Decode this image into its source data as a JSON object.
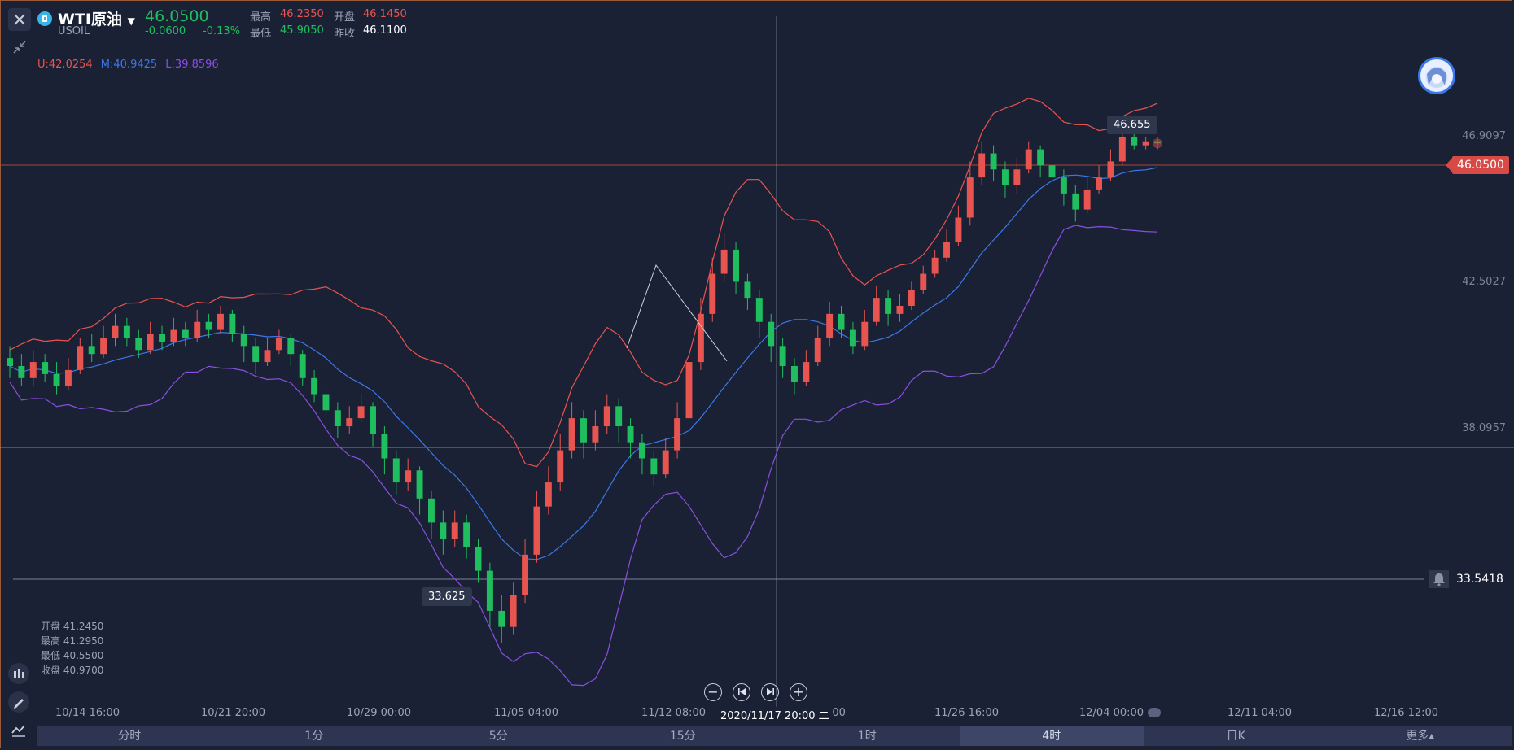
{
  "symbol": {
    "name": "WTI原油",
    "code": "USOIL",
    "price": "46.0500",
    "change": "-0.0600",
    "change_pct": "-0.13%",
    "high_label": "最高",
    "high": "46.2350",
    "open_label": "开盘",
    "open": "46.1450",
    "low_label": "最低",
    "low": "45.9050",
    "prev_close_label": "昨收",
    "prev_close": "46.1100"
  },
  "indicators": {
    "upper": "U:42.0254",
    "middle": "M:40.9425",
    "lower": "L:39.8596",
    "upper_color": "#e8544f",
    "middle_color": "#3b78e8",
    "lower_color": "#8a4fe0"
  },
  "y_axis": {
    "labels": [
      "46.9097",
      "42.5027",
      "38.0957"
    ],
    "current_price": "46.0500",
    "alert_price": "33.5418"
  },
  "callouts": {
    "high": "46.655",
    "low": "33.625"
  },
  "ohlc_panel": {
    "open": "开盘 41.2450",
    "high": "最高 41.2950",
    "low": "最低 40.5500",
    "close": "收盘 40.9700"
  },
  "x_axis": {
    "labels": [
      "10/14 16:00",
      "10/21 20:00",
      "10/29 00:00",
      "11/05 04:00",
      "11/12 08:00",
      "",
      "11/26 16:00",
      "12/04 00:00",
      "12/11 04:00",
      "12/16 12:00"
    ],
    "crosshair_label": "2020/11/17 20:00 二",
    "crosshair_tail": ":00"
  },
  "timeframe_tabs": [
    {
      "label": "分时",
      "active": false
    },
    {
      "label": "1分",
      "active": false
    },
    {
      "label": "5分",
      "active": false
    },
    {
      "label": "15分",
      "active": false
    },
    {
      "label": "1时",
      "active": false
    },
    {
      "label": "4时",
      "active": true
    },
    {
      "label": "日K",
      "active": false
    },
    {
      "label": "更多▴",
      "active": false
    }
  ],
  "colors": {
    "up": "#e8544f",
    "down": "#1fbf5f",
    "background": "#1b2135"
  },
  "chart_data": {
    "type": "candlestick",
    "y_range": [
      33.0,
      48.0
    ],
    "candles": [
      [
        40.7,
        40.5,
        41.0,
        40.2
      ],
      [
        40.5,
        40.2,
        40.8,
        40.0
      ],
      [
        40.2,
        40.6,
        40.9,
        40.0
      ],
      [
        40.6,
        40.3,
        40.8,
        40.1
      ],
      [
        40.3,
        40.0,
        40.6,
        39.8
      ],
      [
        40.0,
        40.4,
        40.7,
        39.9
      ],
      [
        40.4,
        41.0,
        41.2,
        40.3
      ],
      [
        41.0,
        40.8,
        41.3,
        40.6
      ],
      [
        40.8,
        41.2,
        41.5,
        40.7
      ],
      [
        41.2,
        41.5,
        41.8,
        41.0
      ],
      [
        41.5,
        41.2,
        41.7,
        41.0
      ],
      [
        41.2,
        40.9,
        41.4,
        40.7
      ],
      [
        40.9,
        41.3,
        41.6,
        40.8
      ],
      [
        41.3,
        41.1,
        41.5,
        40.9
      ],
      [
        41.1,
        41.4,
        41.7,
        41.0
      ],
      [
        41.4,
        41.2,
        41.6,
        41.0
      ],
      [
        41.2,
        41.6,
        41.9,
        41.1
      ],
      [
        41.6,
        41.4,
        41.8,
        41.2
      ],
      [
        41.4,
        41.8,
        42.0,
        41.3
      ],
      [
        41.8,
        41.3,
        41.9,
        41.1
      ],
      [
        41.3,
        41.0,
        41.5,
        40.6
      ],
      [
        41.0,
        40.6,
        41.2,
        40.3
      ],
      [
        40.6,
        40.9,
        41.2,
        40.5
      ],
      [
        40.9,
        41.2,
        41.4,
        40.8
      ],
      [
        41.2,
        40.8,
        41.3,
        40.5
      ],
      [
        40.8,
        40.2,
        40.9,
        40.0
      ],
      [
        40.2,
        39.8,
        40.4,
        39.6
      ],
      [
        39.8,
        39.4,
        40.0,
        39.2
      ],
      [
        39.4,
        39.0,
        39.6,
        38.7
      ],
      [
        39.0,
        39.2,
        39.5,
        38.8
      ],
      [
        39.2,
        39.5,
        39.8,
        39.1
      ],
      [
        39.5,
        38.8,
        39.6,
        38.5
      ],
      [
        38.8,
        38.2,
        39.0,
        37.8
      ],
      [
        38.2,
        37.6,
        38.4,
        37.3
      ],
      [
        37.6,
        37.9,
        38.2,
        37.4
      ],
      [
        37.9,
        37.2,
        38.0,
        36.8
      ],
      [
        37.2,
        36.6,
        37.4,
        36.2
      ],
      [
        36.6,
        36.2,
        36.9,
        35.8
      ],
      [
        36.2,
        36.6,
        36.9,
        36.0
      ],
      [
        36.6,
        36.0,
        36.8,
        35.7
      ],
      [
        36.0,
        35.4,
        36.2,
        35.1
      ],
      [
        35.4,
        34.4,
        35.6,
        34.0
      ],
      [
        34.4,
        34.0,
        34.8,
        33.6
      ],
      [
        34.0,
        34.8,
        35.1,
        33.8
      ],
      [
        34.8,
        35.8,
        36.2,
        34.6
      ],
      [
        35.8,
        37.0,
        37.4,
        35.6
      ],
      [
        37.0,
        37.6,
        38.0,
        36.8
      ],
      [
        37.6,
        38.4,
        38.8,
        37.4
      ],
      [
        38.4,
        39.2,
        39.6,
        38.2
      ],
      [
        39.2,
        38.6,
        39.4,
        38.2
      ],
      [
        38.6,
        39.0,
        39.4,
        38.4
      ],
      [
        39.0,
        39.5,
        39.8,
        38.8
      ],
      [
        39.5,
        39.0,
        39.7,
        38.6
      ],
      [
        39.0,
        38.6,
        39.2,
        38.2
      ],
      [
        38.6,
        38.2,
        38.8,
        37.8
      ],
      [
        38.2,
        37.8,
        38.4,
        37.5
      ],
      [
        37.8,
        38.4,
        38.7,
        37.7
      ],
      [
        38.4,
        39.2,
        39.6,
        38.2
      ],
      [
        39.2,
        40.6,
        41.0,
        39.0
      ],
      [
        40.6,
        41.8,
        42.2,
        40.4
      ],
      [
        41.8,
        42.8,
        43.2,
        41.6
      ],
      [
        42.8,
        43.4,
        43.8,
        42.6
      ],
      [
        43.4,
        42.6,
        43.6,
        42.3
      ],
      [
        42.6,
        42.2,
        42.8,
        41.9
      ],
      [
        42.2,
        41.6,
        42.4,
        41.2
      ],
      [
        41.6,
        41.0,
        41.8,
        40.6
      ],
      [
        41.0,
        40.5,
        41.2,
        40.2
      ],
      [
        40.5,
        40.1,
        40.7,
        39.8
      ],
      [
        40.1,
        40.6,
        40.9,
        40.0
      ],
      [
        40.6,
        41.2,
        41.5,
        40.5
      ],
      [
        41.2,
        41.8,
        42.1,
        41.0
      ],
      [
        41.8,
        41.4,
        42.0,
        41.2
      ],
      [
        41.4,
        41.0,
        41.6,
        40.8
      ],
      [
        41.0,
        41.6,
        41.9,
        40.9
      ],
      [
        41.6,
        42.2,
        42.5,
        41.5
      ],
      [
        42.2,
        41.8,
        42.4,
        41.5
      ],
      [
        41.8,
        42.0,
        42.3,
        41.6
      ],
      [
        42.0,
        42.4,
        42.6,
        41.9
      ],
      [
        42.4,
        42.8,
        43.0,
        42.3
      ],
      [
        42.8,
        43.2,
        43.4,
        42.7
      ],
      [
        43.2,
        43.6,
        43.9,
        43.1
      ],
      [
        43.6,
        44.2,
        44.5,
        43.5
      ],
      [
        44.2,
        45.2,
        45.6,
        44.0
      ],
      [
        45.2,
        45.8,
        46.1,
        45.0
      ],
      [
        45.8,
        45.4,
        46.0,
        45.1
      ],
      [
        45.4,
        45.0,
        45.6,
        44.7
      ],
      [
        45.0,
        45.4,
        45.7,
        44.8
      ],
      [
        45.4,
        45.9,
        46.1,
        45.3
      ],
      [
        45.9,
        45.5,
        46.0,
        45.2
      ],
      [
        45.5,
        45.2,
        45.7,
        44.9
      ],
      [
        45.2,
        44.8,
        45.4,
        44.5
      ],
      [
        44.8,
        44.4,
        45.0,
        44.1
      ],
      [
        44.4,
        44.9,
        45.2,
        44.3
      ],
      [
        44.9,
        45.2,
        45.5,
        44.8
      ],
      [
        45.2,
        45.6,
        45.9,
        45.1
      ],
      [
        45.6,
        46.2,
        46.6,
        45.5
      ],
      [
        46.2,
        46.0,
        46.4,
        45.9
      ],
      [
        46.0,
        46.1,
        46.2,
        45.9
      ],
      [
        46.1,
        46.05,
        46.2,
        45.9
      ]
    ],
    "x_labels": [
      "10/14 16:00",
      "10/21 20:00",
      "10/29 00:00",
      "11/05 04:00",
      "11/12 08:00",
      "11/19 12:00",
      "11/26 16:00",
      "12/04 00:00",
      "12/11 04:00",
      "12/16 12:00"
    ],
    "annotations": {
      "max": "46.655",
      "min": "33.625"
    }
  }
}
